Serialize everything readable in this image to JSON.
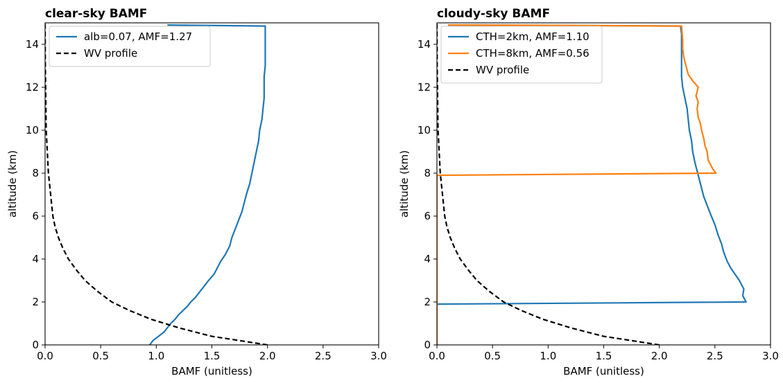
{
  "chart_data": [
    {
      "type": "line",
      "title": "clear-sky BAMF",
      "xlabel": "BAMF (unitless)",
      "ylabel": "altitude (km)",
      "xlim": [
        0.0,
        3.0
      ],
      "ylim": [
        0,
        15
      ],
      "xticks": [
        "0.0",
        "0.5",
        "1.0",
        "1.5",
        "2.0",
        "2.5",
        "3.0"
      ],
      "yticks": [
        "0",
        "2",
        "4",
        "6",
        "8",
        "10",
        "12",
        "14"
      ],
      "legend_position": "upper-left",
      "series": [
        {
          "name": "alb=0.07, AMF=1.27",
          "color": "#1f77b4",
          "dash": "solid",
          "points": [
            [
              0.94,
              0
            ],
            [
              0.97,
              0.2
            ],
            [
              1.02,
              0.4
            ],
            [
              1.07,
              0.6
            ],
            [
              1.1,
              0.8
            ],
            [
              1.13,
              1.0
            ],
            [
              1.17,
              1.2
            ],
            [
              1.2,
              1.4
            ],
            [
              1.24,
              1.6
            ],
            [
              1.28,
              1.8
            ],
            [
              1.31,
              2.0
            ],
            [
              1.35,
              2.2
            ],
            [
              1.38,
              2.4
            ],
            [
              1.41,
              2.6
            ],
            [
              1.44,
              2.8
            ],
            [
              1.47,
              3.0
            ],
            [
              1.52,
              3.3
            ],
            [
              1.55,
              3.6
            ],
            [
              1.58,
              3.9
            ],
            [
              1.62,
              4.2
            ],
            [
              1.66,
              4.6
            ],
            [
              1.68,
              5.0
            ],
            [
              1.71,
              5.4
            ],
            [
              1.74,
              5.8
            ],
            [
              1.77,
              6.2
            ],
            [
              1.79,
              6.6
            ],
            [
              1.81,
              7.0
            ],
            [
              1.84,
              7.5
            ],
            [
              1.86,
              8.0
            ],
            [
              1.88,
              8.5
            ],
            [
              1.9,
              9.0
            ],
            [
              1.92,
              9.5
            ],
            [
              1.93,
              10.0
            ],
            [
              1.95,
              10.5
            ],
            [
              1.96,
              11.0
            ],
            [
              1.97,
              11.5
            ],
            [
              1.97,
              12.0
            ],
            [
              1.97,
              12.5
            ],
            [
              1.98,
              13.0
            ],
            [
              1.98,
              13.5
            ],
            [
              1.98,
              14.0
            ],
            [
              1.98,
              14.5
            ],
            [
              1.98,
              14.85
            ],
            [
              1.5,
              14.88
            ],
            [
              1.1,
              14.9
            ]
          ]
        },
        {
          "name": "WV profile",
          "color": "#000000",
          "dash": "dashed",
          "points": [
            [
              2.0,
              0
            ],
            [
              1.5,
              0.4
            ],
            [
              1.2,
              0.8
            ],
            [
              0.95,
              1.2
            ],
            [
              0.76,
              1.6
            ],
            [
              0.6,
              2.0
            ],
            [
              0.47,
              2.5
            ],
            [
              0.36,
              3.0
            ],
            [
              0.28,
              3.5
            ],
            [
              0.21,
              4.0
            ],
            [
              0.16,
              4.5
            ],
            [
              0.12,
              5.0
            ],
            [
              0.09,
              5.5
            ],
            [
              0.07,
              6.0
            ],
            [
              0.05,
              7.0
            ],
            [
              0.03,
              8.0
            ],
            [
              0.02,
              9.0
            ],
            [
              0.01,
              10.0
            ],
            [
              0.005,
              12.0
            ],
            [
              0.002,
              13.0
            ],
            [
              0.0,
              15.0
            ]
          ]
        }
      ]
    },
    {
      "type": "line",
      "title": "cloudy-sky BAMF",
      "xlabel": "BAMF (unitless)",
      "ylabel": "altitude (km)",
      "xlim": [
        0.0,
        3.0
      ],
      "ylim": [
        0,
        15
      ],
      "xticks": [
        "0.0",
        "0.5",
        "1.0",
        "1.5",
        "2.0",
        "2.5",
        "3.0"
      ],
      "yticks": [
        "0",
        "2",
        "4",
        "6",
        "8",
        "10",
        "12",
        "14"
      ],
      "legend_position": "upper-left",
      "series": [
        {
          "name": "CTH=2km, AMF=1.10",
          "color": "#1f77b4",
          "dash": "solid",
          "points": [
            [
              0.0,
              0
            ],
            [
              0.0,
              1.9
            ],
            [
              2.78,
              2.0
            ],
            [
              2.75,
              2.3
            ],
            [
              2.76,
              2.6
            ],
            [
              2.72,
              3.0
            ],
            [
              2.68,
              3.3
            ],
            [
              2.64,
              3.6
            ],
            [
              2.61,
              3.9
            ],
            [
              2.58,
              4.3
            ],
            [
              2.56,
              4.7
            ],
            [
              2.53,
              5.1
            ],
            [
              2.5,
              5.6
            ],
            [
              2.46,
              6.1
            ],
            [
              2.43,
              6.5
            ],
            [
              2.4,
              6.9
            ],
            [
              2.38,
              7.3
            ],
            [
              2.36,
              7.7
            ],
            [
              2.34,
              8.1
            ],
            [
              2.32,
              8.5
            ],
            [
              2.3,
              9.0
            ],
            [
              2.29,
              9.5
            ],
            [
              2.27,
              10.0
            ],
            [
              2.26,
              10.5
            ],
            [
              2.25,
              11.0
            ],
            [
              2.23,
              11.5
            ],
            [
              2.21,
              12.0
            ],
            [
              2.2,
              12.5
            ],
            [
              2.2,
              13.0
            ],
            [
              2.2,
              13.5
            ],
            [
              2.2,
              14.0
            ],
            [
              2.2,
              14.5
            ],
            [
              2.19,
              14.85
            ],
            [
              1.2,
              14.88
            ],
            [
              0.1,
              14.9
            ]
          ]
        },
        {
          "name": "CTH=8km, AMF=0.56",
          "color": "#ff7f0e",
          "dash": "solid",
          "points": [
            [
              0.0,
              0
            ],
            [
              0.0,
              7.9
            ],
            [
              2.51,
              8.0
            ],
            [
              2.48,
              8.2
            ],
            [
              2.44,
              8.6
            ],
            [
              2.43,
              9.0
            ],
            [
              2.41,
              9.3
            ],
            [
              2.4,
              9.6
            ],
            [
              2.38,
              10.0
            ],
            [
              2.37,
              10.3
            ],
            [
              2.35,
              10.6
            ],
            [
              2.34,
              11.0
            ],
            [
              2.35,
              11.3
            ],
            [
              2.33,
              11.6
            ],
            [
              2.35,
              12.0
            ],
            [
              2.3,
              12.3
            ],
            [
              2.26,
              12.6
            ],
            [
              2.24,
              13.0
            ],
            [
              2.22,
              13.4
            ],
            [
              2.21,
              13.8
            ],
            [
              2.21,
              14.2
            ],
            [
              2.2,
              14.85
            ],
            [
              1.2,
              14.88
            ],
            [
              0.1,
              14.9
            ]
          ]
        },
        {
          "name": "WV profile",
          "color": "#000000",
          "dash": "dashed",
          "points": [
            [
              2.0,
              0
            ],
            [
              1.5,
              0.4
            ],
            [
              1.2,
              0.8
            ],
            [
              0.95,
              1.2
            ],
            [
              0.76,
              1.6
            ],
            [
              0.6,
              2.0
            ],
            [
              0.47,
              2.5
            ],
            [
              0.36,
              3.0
            ],
            [
              0.28,
              3.5
            ],
            [
              0.21,
              4.0
            ],
            [
              0.16,
              4.5
            ],
            [
              0.12,
              5.0
            ],
            [
              0.09,
              5.5
            ],
            [
              0.07,
              6.0
            ],
            [
              0.05,
              7.0
            ],
            [
              0.03,
              8.0
            ],
            [
              0.02,
              9.0
            ],
            [
              0.01,
              10.0
            ],
            [
              0.005,
              12.0
            ],
            [
              0.002,
              13.0
            ],
            [
              0.0,
              15.0
            ]
          ]
        }
      ]
    }
  ]
}
